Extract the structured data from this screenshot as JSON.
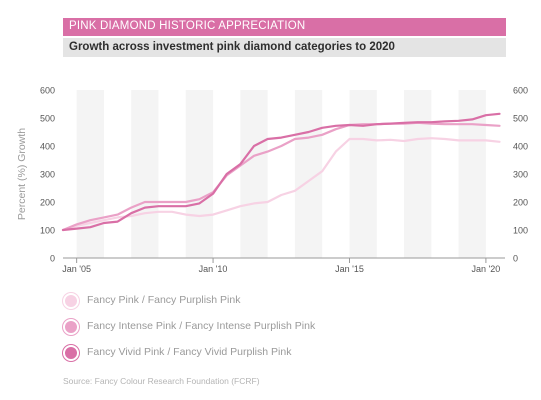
{
  "header": {
    "title": "PINK DIAMOND HISTORIC APPRECIATION",
    "subtitle": "Growth across investment pink diamond categories to 2020"
  },
  "legend": [
    {
      "label": "Fancy Pink / Fancy Purplish Pink",
      "color": "#f7d2e4"
    },
    {
      "label": "Fancy Intense Pink / Fancy Intense Purplish Pink",
      "color": "#eaa1c7"
    },
    {
      "label": "Fancy Vivid Pink / Fancy Vivid Purplish Pink",
      "color": "#d96fa6"
    }
  ],
  "source": "Source: Fancy Colour Research Foundation (FCRF)",
  "colors": {
    "title_bg": "#d96fa6",
    "subtitle_bg": "#e4e4e4",
    "band": "#f4f4f4"
  },
  "chart_data": {
    "type": "line",
    "ylabel": "Percent (%) Growth",
    "xlim": [
      2004.5,
      2020.7
    ],
    "ylim": [
      0,
      600
    ],
    "yticks": [
      0,
      100,
      200,
      300,
      400,
      500,
      600
    ],
    "xticks": [
      {
        "x": 2005,
        "label": "Jan '05"
      },
      {
        "x": 2010,
        "label": "Jan '10"
      },
      {
        "x": 2015,
        "label": "Jan '15"
      },
      {
        "x": 2020,
        "label": "Jan '20"
      }
    ],
    "grid": false,
    "secondary_y_axis": true,
    "series": [
      {
        "name": "Fancy Pink / Fancy Purplish Pink",
        "color": "#f7d2e4",
        "x": [
          2004.5,
          2005.0,
          2005.5,
          2006.0,
          2006.5,
          2007.0,
          2007.5,
          2008.0,
          2008.5,
          2009.0,
          2009.5,
          2010.0,
          2010.5,
          2011.0,
          2011.5,
          2012.0,
          2012.5,
          2013.0,
          2013.5,
          2014.0,
          2014.5,
          2015.0,
          2015.5,
          2016.0,
          2016.5,
          2017.0,
          2017.5,
          2018.0,
          2018.5,
          2019.0,
          2019.5,
          2020.0,
          2020.5
        ],
        "y": [
          100,
          115,
          125,
          135,
          145,
          150,
          160,
          165,
          165,
          155,
          150,
          155,
          170,
          185,
          195,
          200,
          225,
          240,
          275,
          310,
          380,
          425,
          425,
          420,
          422,
          418,
          425,
          428,
          425,
          420,
          420,
          420,
          415
        ]
      },
      {
        "name": "Fancy Intense Pink / Fancy Intense Purplish Pink",
        "color": "#eaa1c7",
        "x": [
          2004.5,
          2005.0,
          2005.5,
          2006.0,
          2006.5,
          2007.0,
          2007.5,
          2008.0,
          2008.5,
          2009.0,
          2009.5,
          2010.0,
          2010.5,
          2011.0,
          2011.5,
          2012.0,
          2012.5,
          2013.0,
          2013.5,
          2014.0,
          2014.5,
          2015.0,
          2015.5,
          2016.0,
          2016.5,
          2017.0,
          2017.5,
          2018.0,
          2018.5,
          2019.0,
          2019.5,
          2020.0,
          2020.5
        ],
        "y": [
          100,
          120,
          135,
          145,
          155,
          180,
          200,
          200,
          200,
          200,
          210,
          235,
          295,
          330,
          365,
          380,
          400,
          425,
          430,
          440,
          460,
          475,
          478,
          478,
          480,
          480,
          483,
          480,
          478,
          478,
          478,
          475,
          472
        ]
      },
      {
        "name": "Fancy Vivid Pink / Fancy Vivid Purplish Pink",
        "color": "#d96fa6",
        "x": [
          2004.5,
          2005.0,
          2005.5,
          2006.0,
          2006.5,
          2007.0,
          2007.5,
          2008.0,
          2008.5,
          2009.0,
          2009.5,
          2010.0,
          2010.5,
          2011.0,
          2011.5,
          2012.0,
          2012.5,
          2013.0,
          2013.5,
          2014.0,
          2014.5,
          2015.0,
          2015.5,
          2016.0,
          2016.5,
          2017.0,
          2017.5,
          2018.0,
          2018.5,
          2019.0,
          2019.5,
          2020.0,
          2020.5
        ],
        "y": [
          100,
          105,
          110,
          125,
          130,
          160,
          180,
          185,
          185,
          185,
          195,
          230,
          300,
          335,
          400,
          425,
          430,
          440,
          450,
          465,
          472,
          475,
          472,
          478,
          480,
          483,
          485,
          485,
          488,
          490,
          495,
          510,
          515
        ]
      }
    ]
  }
}
